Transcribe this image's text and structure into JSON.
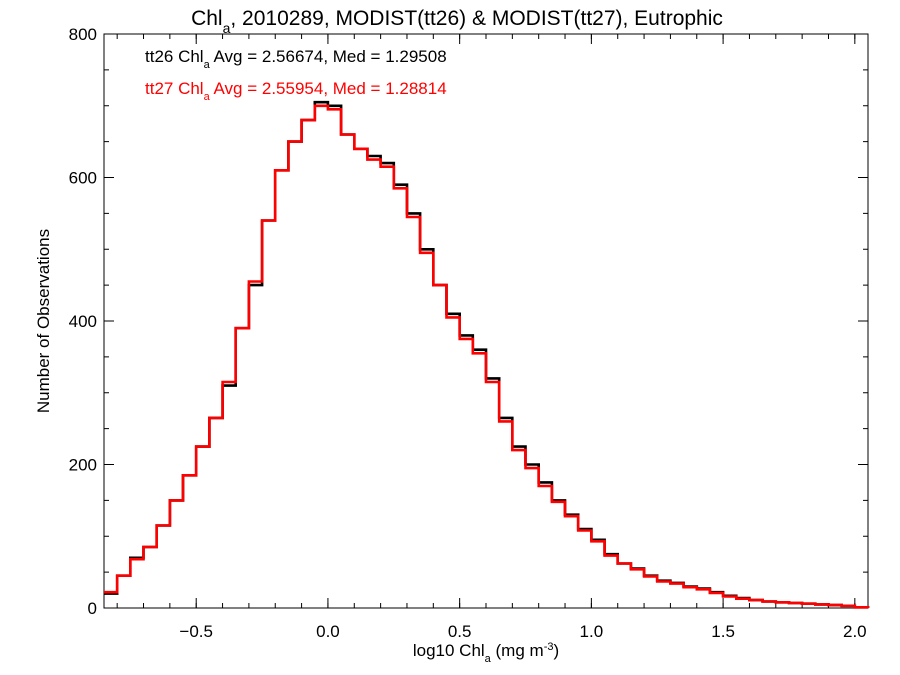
{
  "chart_data": {
    "type": "line",
    "title": {
      "prefix": "Chl",
      "sub": "a",
      "suffix": ", 2010289, MODIST(tt26) & MODIST(tt27), Eutrophic"
    },
    "xlabel": {
      "prefix": "log10 Chl",
      "sub": "a",
      "suffix": " (mg m",
      "sup": "-3",
      "close": ")"
    },
    "ylabel": "Number of Observations",
    "xlim": [
      -0.85,
      2.05
    ],
    "ylim": [
      0,
      800
    ],
    "x_ticks": [
      {
        "value": -0.5,
        "label": "−0.5"
      },
      {
        "value": 0.0,
        "label": "0.0"
      },
      {
        "value": 0.5,
        "label": "0.5"
      },
      {
        "value": 1.0,
        "label": "1.0"
      },
      {
        "value": 1.5,
        "label": "1.5"
      },
      {
        "value": 2.0,
        "label": "2.0"
      }
    ],
    "y_ticks": [
      {
        "value": 0,
        "label": "0"
      },
      {
        "value": 200,
        "label": "200"
      },
      {
        "value": 400,
        "label": "400"
      },
      {
        "value": 600,
        "label": "600"
      },
      {
        "value": 800,
        "label": "800"
      }
    ],
    "x_minor_step": 0.1,
    "y_minor_step": 50,
    "grid": false,
    "legend_position": "top-left",
    "series": [
      {
        "color": "#000000",
        "annotation": {
          "prefix": "tt26 Chl",
          "sub": "a",
          "suffix": " Avg = 2.56674, Med = 1.29508"
        },
        "x": [
          -0.85,
          -0.8,
          -0.75,
          -0.7,
          -0.65,
          -0.6,
          -0.55,
          -0.5,
          -0.45,
          -0.4,
          -0.35,
          -0.3,
          -0.25,
          -0.2,
          -0.15,
          -0.1,
          -0.05,
          0.0,
          0.05,
          0.1,
          0.15,
          0.2,
          0.25,
          0.3,
          0.35,
          0.4,
          0.45,
          0.5,
          0.55,
          0.6,
          0.65,
          0.7,
          0.75,
          0.8,
          0.85,
          0.9,
          0.95,
          1.0,
          1.05,
          1.1,
          1.15,
          1.2,
          1.25,
          1.3,
          1.35,
          1.4,
          1.45,
          1.5,
          1.55,
          1.6,
          1.65,
          1.7,
          1.75,
          1.8,
          1.85,
          1.9,
          1.95,
          2.0,
          2.05
        ],
        "y": [
          20,
          45,
          70,
          85,
          115,
          150,
          185,
          225,
          265,
          310,
          390,
          450,
          540,
          610,
          650,
          680,
          705,
          700,
          660,
          640,
          630,
          620,
          590,
          550,
          500,
          450,
          410,
          380,
          360,
          320,
          265,
          225,
          200,
          175,
          150,
          130,
          110,
          95,
          75,
          62,
          55,
          45,
          38,
          35,
          30,
          27,
          22,
          17,
          14,
          11,
          9,
          8,
          7,
          6,
          5,
          4,
          3,
          1,
          0
        ]
      },
      {
        "color": "#ff0000",
        "annotation": {
          "prefix": "tt27 Chl",
          "sub": "a",
          "suffix": " Avg = 2.55954, Med = 1.28814"
        },
        "x": [
          -0.85,
          -0.8,
          -0.75,
          -0.7,
          -0.65,
          -0.6,
          -0.55,
          -0.5,
          -0.45,
          -0.4,
          -0.35,
          -0.3,
          -0.25,
          -0.2,
          -0.15,
          -0.1,
          -0.05,
          0.0,
          0.05,
          0.1,
          0.15,
          0.2,
          0.25,
          0.3,
          0.35,
          0.4,
          0.45,
          0.5,
          0.55,
          0.6,
          0.65,
          0.7,
          0.75,
          0.8,
          0.85,
          0.9,
          0.95,
          1.0,
          1.05,
          1.1,
          1.15,
          1.2,
          1.25,
          1.3,
          1.35,
          1.4,
          1.45,
          1.5,
          1.55,
          1.6,
          1.65,
          1.7,
          1.75,
          1.8,
          1.85,
          1.9,
          1.95,
          2.0,
          2.05
        ],
        "y": [
          22,
          45,
          68,
          85,
          115,
          150,
          185,
          225,
          265,
          315,
          390,
          455,
          540,
          610,
          650,
          680,
          700,
          695,
          660,
          640,
          625,
          615,
          585,
          545,
          495,
          450,
          405,
          375,
          355,
          315,
          260,
          220,
          195,
          170,
          148,
          128,
          108,
          93,
          73,
          62,
          54,
          44,
          37,
          34,
          29,
          26,
          21,
          16,
          13,
          11,
          9,
          8,
          7,
          6,
          5,
          4,
          3,
          1,
          0
        ]
      }
    ]
  }
}
